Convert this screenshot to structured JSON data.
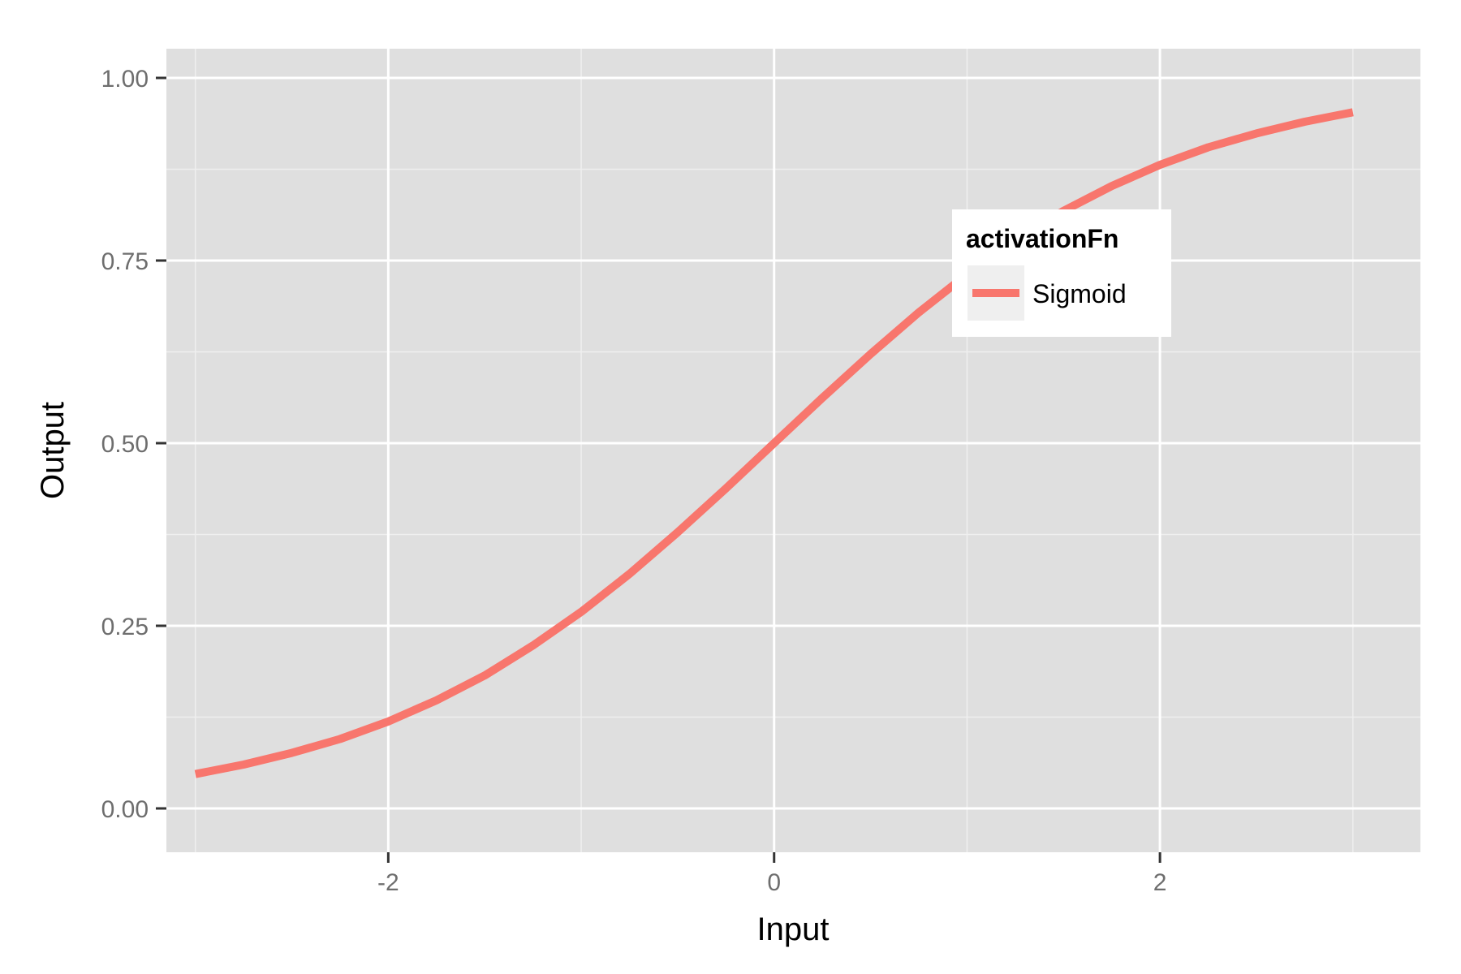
{
  "chart_data": {
    "type": "line",
    "title": "",
    "xlabel": "Input",
    "ylabel": "Output",
    "xlim": [
      -3.15,
      3.35
    ],
    "ylim": [
      -0.06,
      1.04
    ],
    "x_ticks": [
      -2,
      0,
      2
    ],
    "x_tick_labels": [
      "-2",
      "0",
      "2"
    ],
    "x_minor_ticks": [
      -3,
      -1,
      1,
      3
    ],
    "y_ticks": [
      0,
      0.25,
      0.5,
      0.75,
      1.0
    ],
    "y_tick_labels": [
      "0.00",
      "0.25",
      "0.50",
      "0.75",
      "1.00"
    ],
    "y_minor_ticks": [
      0.125,
      0.375,
      0.625,
      0.875
    ],
    "grid": true,
    "legend": {
      "title": "activationFn",
      "placement": "inside-top-right",
      "entries": [
        "Sigmoid"
      ]
    },
    "series": [
      {
        "name": "Sigmoid",
        "color": "#f8766d",
        "x": [
          -3,
          -2.75,
          -2.5,
          -2.25,
          -2,
          -1.75,
          -1.5,
          -1.25,
          -1,
          -0.75,
          -0.5,
          -0.25,
          0,
          0.25,
          0.5,
          0.75,
          1,
          1.25,
          1.5,
          1.75,
          2,
          2.25,
          2.5,
          2.75,
          3
        ],
        "y": [
          0.047,
          0.06,
          0.076,
          0.095,
          0.119,
          0.148,
          0.182,
          0.223,
          0.269,
          0.321,
          0.378,
          0.438,
          0.5,
          0.562,
          0.622,
          0.679,
          0.731,
          0.777,
          0.818,
          0.852,
          0.881,
          0.905,
          0.924,
          0.94,
          0.953
        ]
      }
    ]
  },
  "colors": {
    "panel_background": "#dfdfdf",
    "grid_major": "#ffffff",
    "grid_minor": "#efefef",
    "series": "#f8766d"
  }
}
